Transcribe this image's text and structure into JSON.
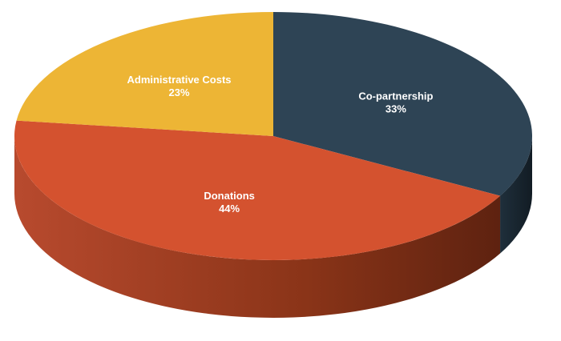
{
  "chart_data": {
    "type": "pie",
    "style": "3d",
    "title": "",
    "slices": [
      {
        "label": "Co-partnership",
        "value": 33,
        "display_value": "33%",
        "color": "#2e4455"
      },
      {
        "label": "Donations",
        "value": 44,
        "display_value": "44%",
        "color": "#d4522f"
      },
      {
        "label": "Administrative Costs",
        "value": 23,
        "display_value": "23%",
        "color": "#edb535"
      }
    ],
    "start_angle_deg": 90,
    "direction": "clockwise"
  }
}
